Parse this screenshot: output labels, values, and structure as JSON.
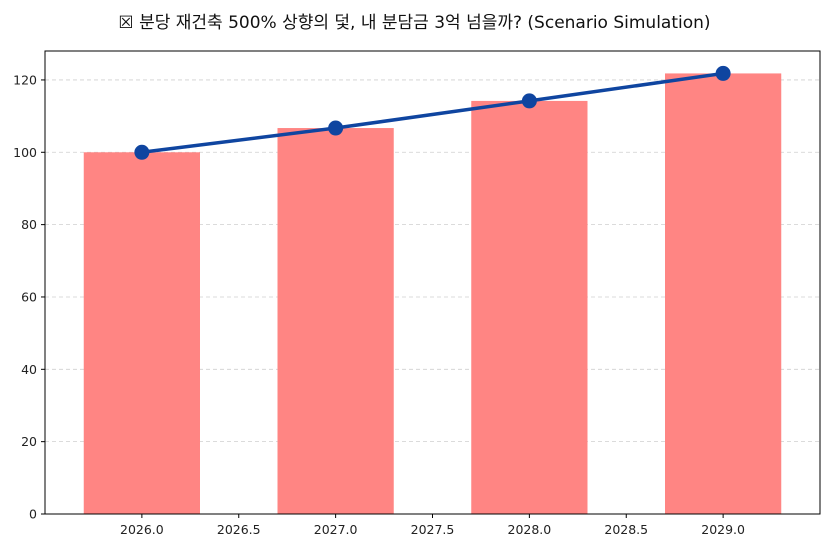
{
  "chart_data": {
    "type": "bar",
    "title": "☒ 분당 재건축 500% 상향의 덫, 내 분담금 3억 넘을까? (Scenario Simulation)",
    "xlabel": "",
    "ylabel": "",
    "x": [
      2026,
      2027,
      2028,
      2029
    ],
    "series": [
      {
        "type": "bar",
        "values": [
          100,
          106.7,
          114.2,
          121.8
        ],
        "color": "#ff8583"
      },
      {
        "type": "line",
        "values": [
          100,
          106.7,
          114.2,
          121.8
        ],
        "color": "#0f45a0",
        "marker": "circle"
      }
    ],
    "xlim": [
      2025.5,
      2029.5
    ],
    "ylim": [
      0,
      128
    ],
    "xticks": [
      "2026.0",
      "2026.5",
      "2027.0",
      "2027.5",
      "2028.0",
      "2028.5",
      "2029.0"
    ],
    "yticks": [
      "0",
      "20",
      "40",
      "60",
      "80",
      "100",
      "120"
    ],
    "grid": "y-dashed",
    "legend": "none"
  }
}
